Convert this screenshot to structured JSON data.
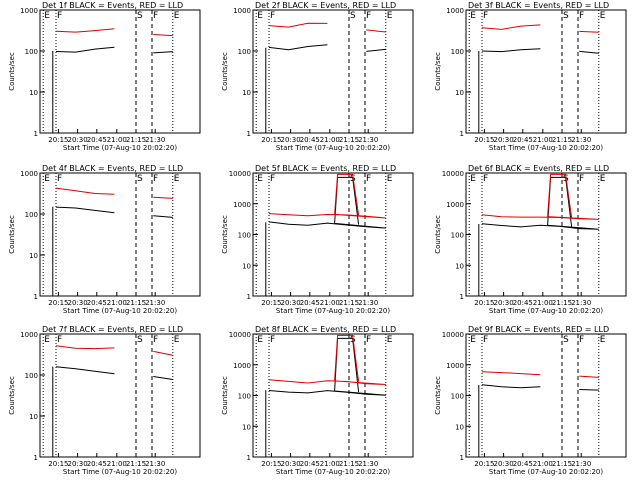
{
  "figure": {
    "ylabel": "Counts/sec",
    "time_tick_labels": [
      "20:15",
      "20:30",
      "20:45",
      "21:00",
      "21:15",
      "21:30"
    ],
    "xlabel": "Start Time (07-Aug-10 20:02:20)",
    "region_markers": [
      "E",
      "F",
      "S",
      "F",
      "E"
    ]
  },
  "chart_data": [
    {
      "type": "line",
      "title": "Det 1f BLACK = Events, RED = LLD",
      "ylabel": "Counts/sec",
      "xlabel": "Start Time (07-Aug-10 20:02:20)",
      "ylim": [
        1,
        1000
      ],
      "y_ticks": [
        "1",
        "10",
        "100",
        "1000"
      ],
      "x_tick_labels": [
        "20:15",
        "20:30",
        "20:45",
        "21:00",
        "21:15",
        "21:30"
      ],
      "series": [
        {
          "name": "Events",
          "color": "#000000",
          "values": [
            100,
            95,
            110,
            120,
            100,
            90,
            95
          ]
        },
        {
          "name": "LLD",
          "color": "#e00000",
          "values": [
            300,
            280,
            320,
            350,
            300,
            260,
            240
          ]
        }
      ],
      "saa_spike": false
    },
    {
      "type": "line",
      "title": "Det 2f BLACK = Events, RED = LLD",
      "ylabel": "Counts/sec",
      "xlabel": "Start Time (07-Aug-10 20:02:20)",
      "ylim": [
        1,
        1000
      ],
      "y_ticks": [
        "1",
        "10",
        "100",
        "1000"
      ],
      "x_tick_labels": [
        "20:15",
        "20:30",
        "20:45",
        "21:00",
        "21:15",
        "21:30"
      ],
      "series": [
        {
          "name": "Events",
          "color": "#000000",
          "values": [
            120,
            110,
            130,
            140,
            120,
            100,
            110
          ]
        },
        {
          "name": "LLD",
          "color": "#e00000",
          "values": [
            420,
            380,
            460,
            480,
            400,
            320,
            300
          ]
        }
      ],
      "saa_spike": false
    },
    {
      "type": "line",
      "title": "Det 3f BLACK = Events, RED = LLD",
      "ylabel": "Counts/sec",
      "xlabel": "Start Time (07-Aug-10 20:02:20)",
      "ylim": [
        1,
        1000
      ],
      "y_ticks": [
        "1",
        "10",
        "100",
        "1000"
      ],
      "x_tick_labels": [
        "20:15",
        "20:30",
        "20:45",
        "21:00",
        "21:15",
        "21:30"
      ],
      "series": [
        {
          "name": "Events",
          "color": "#000000",
          "values": [
            100,
            95,
            110,
            115,
            100,
            95,
            90
          ]
        },
        {
          "name": "LLD",
          "color": "#e00000",
          "values": [
            380,
            340,
            400,
            420,
            360,
            300,
            280
          ]
        }
      ],
      "saa_spike": false
    },
    {
      "type": "line",
      "title": "Det 4f BLACK = Events, RED = LLD",
      "ylabel": "Counts/sec",
      "xlabel": "Start Time (07-Aug-10 20:02:20)",
      "ylim": [
        1,
        1000
      ],
      "y_ticks": [
        "1",
        "10",
        "100",
        "1000"
      ],
      "x_tick_labels": [
        "20:15",
        "20:30",
        "20:45",
        "21:00",
        "21:15",
        "21:30"
      ],
      "series": [
        {
          "name": "Events",
          "color": "#000000",
          "values": [
            150,
            140,
            120,
            110,
            100,
            90,
            80
          ]
        },
        {
          "name": "LLD",
          "color": "#e00000",
          "values": [
            420,
            380,
            320,
            300,
            280,
            260,
            240
          ]
        }
      ],
      "saa_spike": false
    },
    {
      "type": "line",
      "title": "Det 5f BLACK = Events, RED = LLD",
      "ylabel": "Counts/sec",
      "xlabel": "Start Time (07-Aug-10 20:02:20)",
      "ylim": [
        1,
        10000
      ],
      "y_ticks": [
        "1",
        "10",
        "100",
        "1000",
        "10000"
      ],
      "x_tick_labels": [
        "20:15",
        "20:30",
        "20:45",
        "21:00",
        "21:15",
        "21:30"
      ],
      "series": [
        {
          "name": "Events",
          "color": "#000000",
          "values": [
            250,
            220,
            200,
            230,
            210,
            180,
            160
          ]
        },
        {
          "name": "LLD",
          "color": "#e00000",
          "values": [
            480,
            430,
            420,
            450,
            430,
            380,
            350
          ]
        }
      ],
      "saa_spike": true
    },
    {
      "type": "line",
      "title": "Det 6f BLACK = Events, RED = LLD",
      "ylabel": "Counts/sec",
      "xlabel": "Start Time (07-Aug-10 20:02:20)",
      "ylim": [
        1,
        10000
      ],
      "y_ticks": [
        "1",
        "10",
        "100",
        "1000",
        "10000"
      ],
      "x_tick_labels": [
        "20:15",
        "20:30",
        "20:45",
        "21:00",
        "21:15",
        "21:30"
      ],
      "series": [
        {
          "name": "Events",
          "color": "#000000",
          "values": [
            220,
            190,
            180,
            200,
            180,
            160,
            150
          ]
        },
        {
          "name": "LLD",
          "color": "#e00000",
          "values": [
            450,
            380,
            360,
            380,
            360,
            320,
            300
          ]
        }
      ],
      "saa_spike": true
    },
    {
      "type": "line",
      "title": "Det 7f BLACK = Events, RED = LLD",
      "ylabel": "Counts/sec",
      "xlabel": "Start Time (07-Aug-10 20:02:20)",
      "ylim": [
        1,
        1000
      ],
      "y_ticks": [
        "1",
        "10",
        "100",
        "1000"
      ],
      "x_tick_labels": [
        "20:15",
        "20:30",
        "20:45",
        "21:00",
        "21:15",
        "21:30"
      ],
      "series": [
        {
          "name": "Events",
          "color": "#000000",
          "values": [
            160,
            140,
            120,
            110,
            100,
            90,
            80
          ]
        },
        {
          "name": "LLD",
          "color": "#e00000",
          "values": [
            500,
            460,
            440,
            450,
            420,
            380,
            300
          ]
        }
      ],
      "saa_spike": false
    },
    {
      "type": "line",
      "title": "Det 8f BLACK = Events, RED = LLD",
      "ylabel": "Counts/sec",
      "xlabel": "Start Time (07-Aug-10 20:02:20)",
      "ylim": [
        1,
        10000
      ],
      "y_ticks": [
        "1",
        "10",
        "100",
        "1000",
        "10000"
      ],
      "x_tick_labels": [
        "20:15",
        "20:30",
        "20:45",
        "21:00",
        "21:15",
        "21:30"
      ],
      "series": [
        {
          "name": "Events",
          "color": "#000000",
          "values": [
            150,
            130,
            120,
            140,
            130,
            110,
            100
          ]
        },
        {
          "name": "LLD",
          "color": "#e00000",
          "values": [
            320,
            280,
            260,
            300,
            280,
            250,
            230
          ]
        }
      ],
      "saa_spike": true
    },
    {
      "type": "line",
      "title": "Det 9f BLACK = Events, RED = LLD",
      "ylabel": "Counts/sec",
      "xlabel": "Start Time (07-Aug-10 20:02:20)",
      "ylim": [
        1,
        10000
      ],
      "y_ticks": [
        "1",
        "10",
        "100",
        "1000",
        "10000"
      ],
      "x_tick_labels": [
        "20:15",
        "20:30",
        "20:45",
        "21:00",
        "21:15",
        "21:30"
      ],
      "series": [
        {
          "name": "Events",
          "color": "#000000",
          "values": [
            220,
            200,
            180,
            190,
            180,
            160,
            150
          ]
        },
        {
          "name": "LLD",
          "color": "#e00000",
          "values": [
            600,
            550,
            500,
            480,
            460,
            420,
            400
          ]
        }
      ],
      "saa_spike": false
    }
  ]
}
